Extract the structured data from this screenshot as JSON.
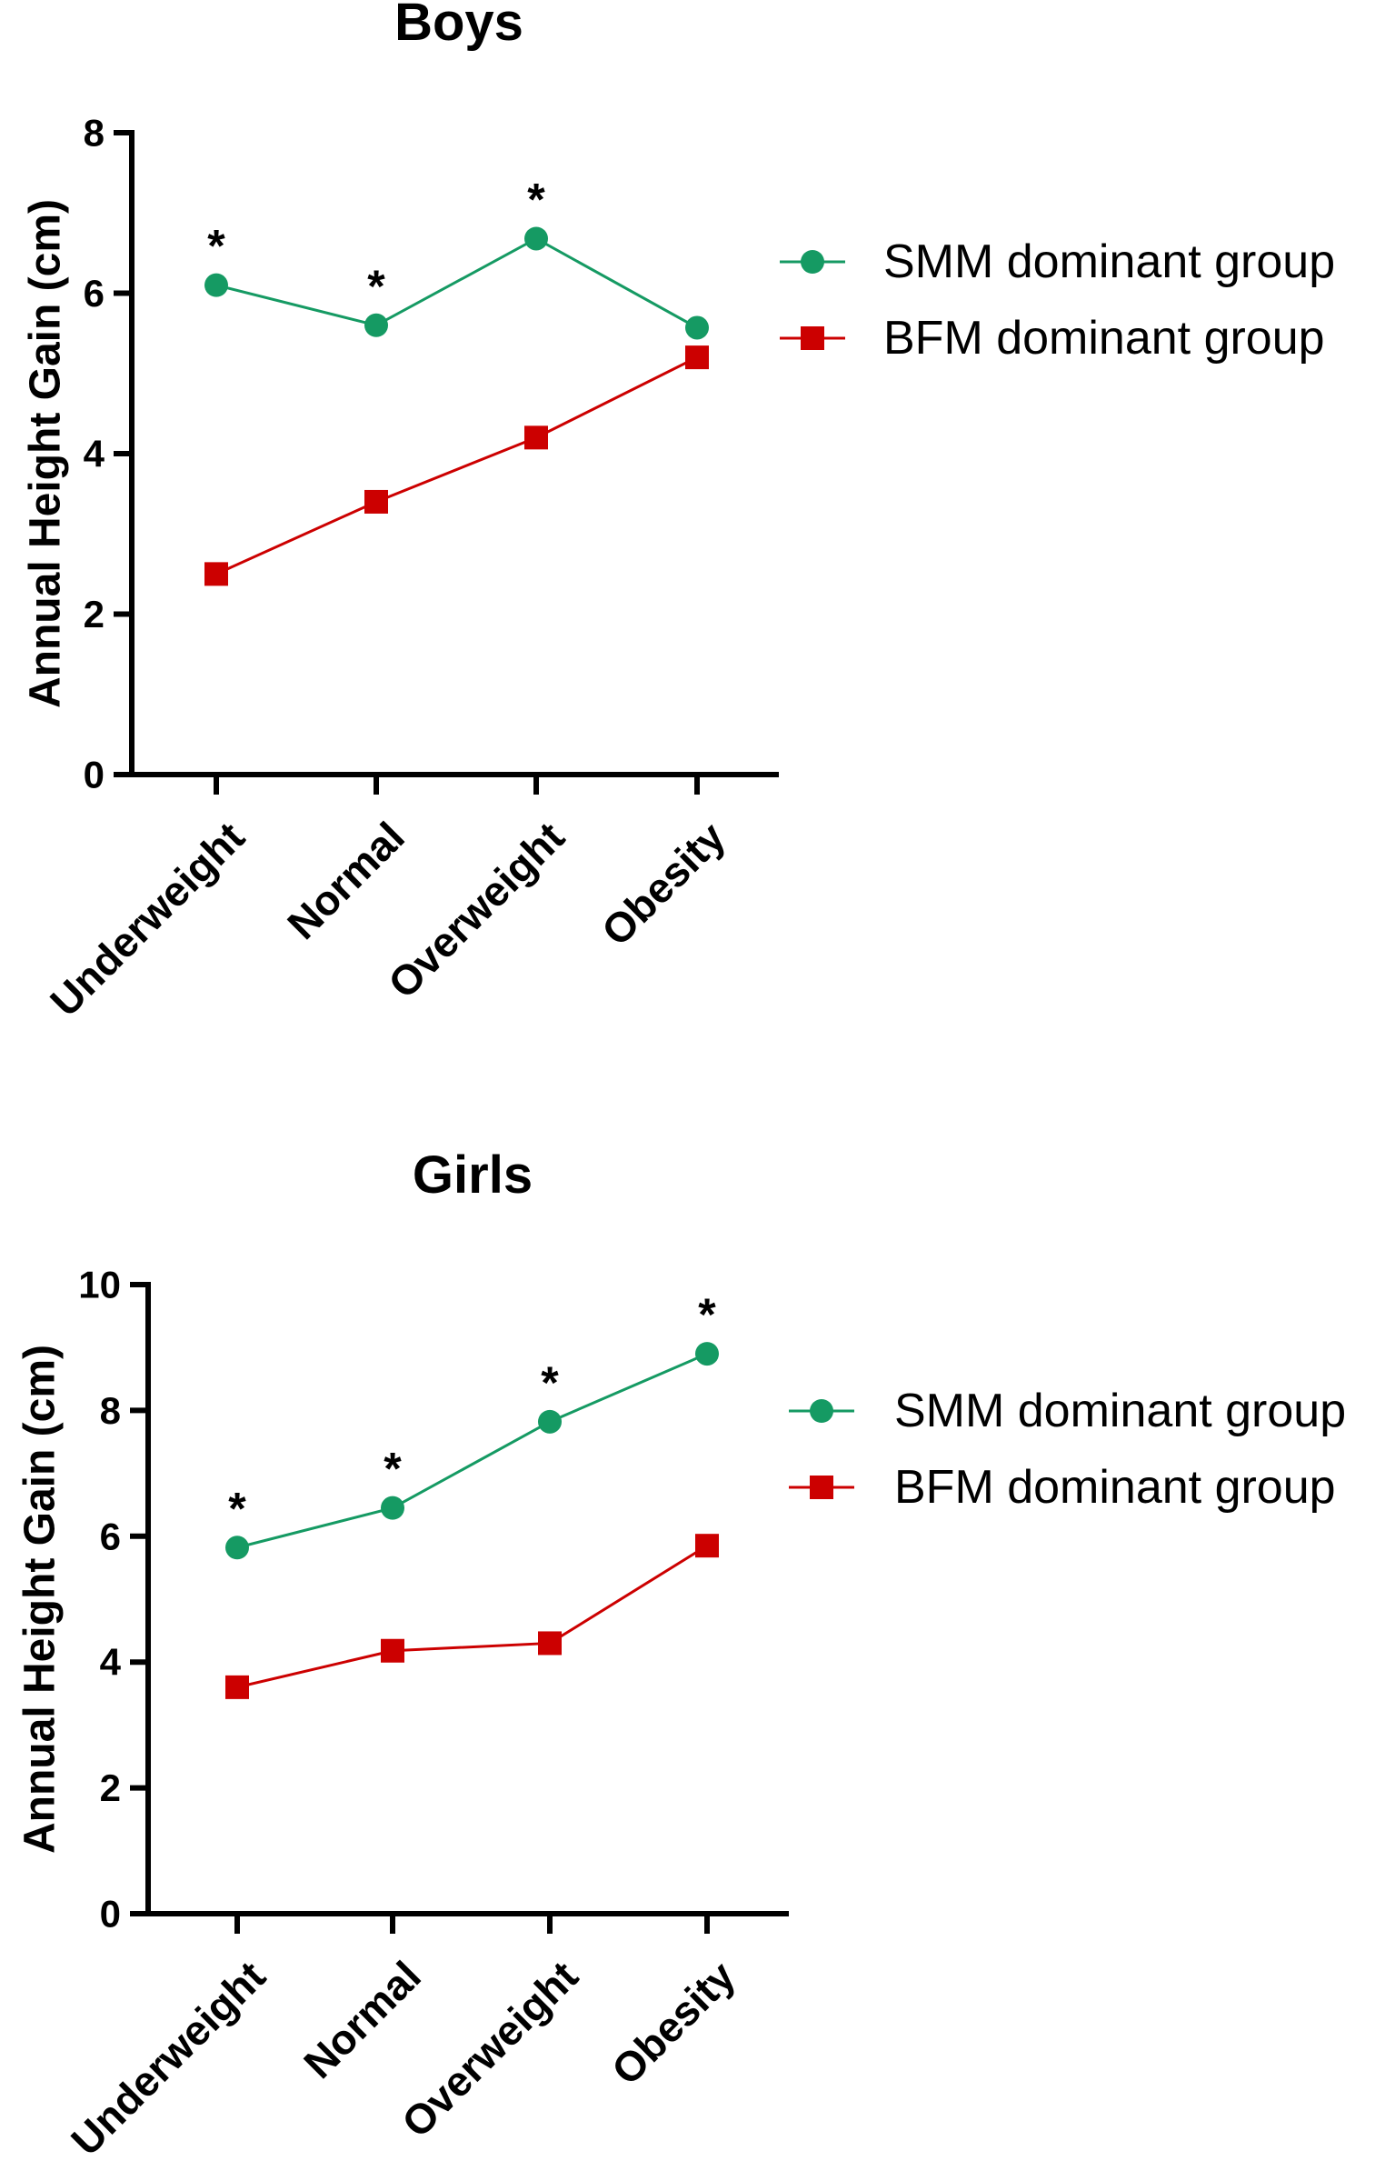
{
  "chart_data": [
    {
      "type": "line",
      "title": "Boys",
      "xlabel": "",
      "ylabel": "Annual Height Gain (cm)",
      "categories": [
        "Underweight",
        "Normal",
        "Overweight",
        "Obesity"
      ],
      "ylim": [
        0,
        8
      ],
      "yticks": [
        "0",
        "2",
        "4",
        "6",
        "8"
      ],
      "legend_position": "right",
      "series": [
        {
          "name": "SMM dominant group",
          "marker": "circle",
          "color": "#159a63",
          "values": [
            6.1,
            5.6,
            6.68,
            5.57
          ]
        },
        {
          "name": "BFM dominant group",
          "marker": "square",
          "color": "#cc0000",
          "values": [
            2.5,
            3.4,
            4.2,
            5.2
          ]
        }
      ],
      "annotations": [
        {
          "text": "*",
          "category": "Underweight"
        },
        {
          "text": "*",
          "category": "Normal"
        },
        {
          "text": "*",
          "category": "Overweight"
        }
      ]
    },
    {
      "type": "line",
      "title": "Girls",
      "xlabel": "",
      "ylabel": "Annual Height Gain (cm)",
      "categories": [
        "Underweight",
        "Normal",
        "Overweight",
        "Obesity"
      ],
      "ylim": [
        0,
        10
      ],
      "yticks": [
        "0",
        "2",
        "4",
        "6",
        "8",
        "10"
      ],
      "legend_position": "right",
      "series": [
        {
          "name": "SMM dominant group",
          "marker": "circle",
          "color": "#159a63",
          "values": [
            5.82,
            6.45,
            7.82,
            8.9
          ]
        },
        {
          "name": "BFM dominant group",
          "marker": "square",
          "color": "#cc0000",
          "values": [
            3.6,
            4.18,
            4.3,
            5.85
          ]
        }
      ],
      "annotations": [
        {
          "text": "*",
          "category": "Underweight"
        },
        {
          "text": "*",
          "category": "Normal"
        },
        {
          "text": "*",
          "category": "Overweight"
        },
        {
          "text": "*",
          "category": "Obesity"
        }
      ]
    }
  ]
}
